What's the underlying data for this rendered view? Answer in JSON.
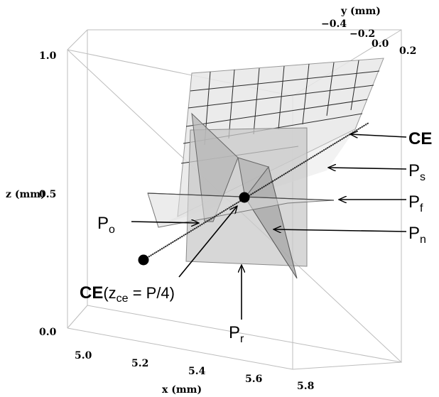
{
  "axes": {
    "x_label": "x (mm)",
    "y_label": "y (mm)",
    "z_label": "z (mm)",
    "x_ticks": [
      "5.0",
      "5.2",
      "5.4",
      "5.6",
      "5.8"
    ],
    "y_ticks": [
      "−0.4",
      "−0.2",
      "0.0",
      "0.2"
    ],
    "z_ticks": [
      "1.0",
      "0.5",
      "0.0"
    ]
  },
  "callouts": {
    "ce": "CE",
    "ps_main": "P",
    "ps_sub": "s",
    "pf_main": "P",
    "pf_sub": "f",
    "pn_main": "P",
    "pn_sub": "n",
    "po_main": "P",
    "po_sub": "o",
    "pr_main": "P",
    "pr_sub": "r",
    "ce_point_bold": "CE",
    "ce_point_open": "(z",
    "ce_point_sub": "ce",
    "ce_point_rest": " = P/4)"
  },
  "colors": {
    "plane_light": "#e8e8e8",
    "plane_mid": "#bfbfbf",
    "plane_dark": "#9d9d9d",
    "box_edges": "#bdbdbd",
    "grid_lines": "#222222",
    "marker": "#000000"
  }
}
